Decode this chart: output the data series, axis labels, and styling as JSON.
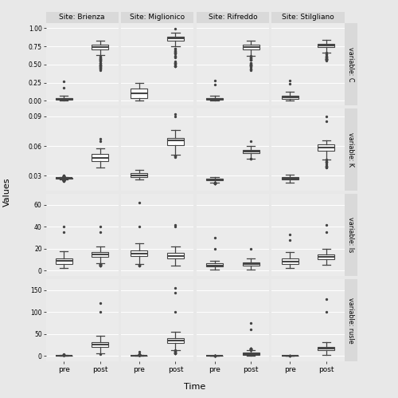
{
  "sites": [
    "Site: Brienza",
    "Site: Miglionico",
    "Site: Rifreddo",
    "Site: Stilgliano"
  ],
  "site_keys": [
    "Brienza",
    "Miglionico",
    "Rifreddo",
    "Stilgliano"
  ],
  "var_keys": [
    "C",
    "K",
    "ls",
    "rusle"
  ],
  "var_labels": [
    "variable: C",
    "variable: K",
    "variable: ls",
    "variable: rusle"
  ],
  "time_labels": [
    "pre",
    "post"
  ],
  "xlabel": "Time",
  "ylabel": "Values",
  "fig_bg": "#e8e8e8",
  "panel_bg": "#ebebeb",
  "strip_bg": "#d9d9d9",
  "box_fill": "#ffffff",
  "box_edge": "#444444",
  "grid_color": "#ffffff",
  "ylims": {
    "C": [
      -0.06,
      1.07
    ],
    "K": [
      0.015,
      0.098
    ],
    "ls": [
      -5,
      70
    ],
    "rusle": [
      -12,
      175
    ]
  },
  "yticks": {
    "C": [
      0.0,
      0.25,
      0.5,
      0.75,
      1.0
    ],
    "K": [
      0.03,
      0.06,
      0.09
    ],
    "ls": [
      0,
      20,
      40,
      60
    ],
    "rusle": [
      0,
      50,
      100,
      150
    ]
  },
  "box_stats": {
    "C": {
      "Brienza": {
        "pre": [
          0.0,
          0.0,
          0.02,
          0.04,
          0.07,
          [
            0.18,
            0.27
          ]
        ],
        "post": [
          0.42,
          0.7,
          0.76,
          0.78,
          0.83,
          [
            0.5
          ]
        ]
      },
      "Miglionico": {
        "pre": [
          0.0,
          0.01,
          0.1,
          0.18,
          0.25,
          []
        ],
        "post": [
          0.47,
          0.82,
          0.87,
          0.89,
          0.94,
          [
            0.99
          ]
        ]
      },
      "Rifreddo": {
        "pre": [
          0.0,
          0.0,
          0.02,
          0.04,
          0.07,
          [
            0.22,
            0.28
          ]
        ],
        "post": [
          0.42,
          0.7,
          0.76,
          0.78,
          0.83,
          []
        ]
      },
      "Stilgliano": {
        "pre": [
          0.0,
          0.0,
          0.05,
          0.08,
          0.13,
          [
            0.23,
            0.28
          ]
        ],
        "post": [
          0.55,
          0.73,
          0.78,
          0.8,
          0.84,
          []
        ]
      }
    },
    "K": {
      "Brienza": {
        "pre": [
          0.025,
          0.027,
          0.028,
          0.028,
          0.03,
          []
        ],
        "post": [
          0.038,
          0.044,
          0.05,
          0.053,
          0.058,
          [
            0.065,
            0.067
          ]
        ]
      },
      "Miglionico": {
        "pre": [
          0.026,
          0.028,
          0.032,
          0.033,
          0.036,
          []
        ],
        "post": [
          0.048,
          0.06,
          0.067,
          0.07,
          0.076,
          [
            0.09,
            0.092
          ]
        ]
      },
      "Rifreddo": {
        "pre": [
          0.022,
          0.025,
          0.027,
          0.027,
          0.029,
          []
        ],
        "post": [
          0.047,
          0.052,
          0.055,
          0.057,
          0.06,
          [
            0.065
          ]
        ]
      },
      "Stilgliano": {
        "pre": [
          0.023,
          0.026,
          0.028,
          0.029,
          0.031,
          [
            0.027
          ]
        ],
        "post": [
          0.038,
          0.055,
          0.06,
          0.063,
          0.066,
          [
            0.085,
            0.09
          ]
        ]
      }
    },
    "ls": {
      "Brienza": {
        "pre": [
          2,
          5,
          10,
          12,
          18,
          [
            35,
            40
          ]
        ],
        "post": [
          4,
          12,
          15,
          17,
          22,
          [
            35,
            40
          ]
        ]
      },
      "Miglionico": {
        "pre": [
          4,
          12,
          17,
          19,
          25,
          [
            40,
            62
          ]
        ],
        "post": [
          4,
          10,
          14,
          17,
          22,
          [
            40,
            42
          ]
        ]
      },
      "Rifreddo": {
        "pre": [
          1,
          3,
          5,
          7,
          9,
          [
            20,
            30
          ]
        ],
        "post": [
          1,
          4,
          6,
          8,
          11,
          [
            20
          ]
        ]
      },
      "Stilgliano": {
        "pre": [
          2,
          5,
          10,
          12,
          17,
          [
            28,
            33
          ]
        ],
        "post": [
          5,
          10,
          13,
          15,
          20,
          [
            35,
            42
          ]
        ]
      }
    },
    "rusle": {
      "Brienza": {
        "pre": [
          0.0,
          0.0,
          0.5,
          1.0,
          3.5,
          [
            5.0
          ]
        ],
        "post": [
          5,
          19,
          28,
          33,
          46,
          [
            100,
            120
          ]
        ]
      },
      "Miglionico": {
        "pre": [
          0.0,
          0.0,
          0.5,
          1.0,
          4.0,
          [
            10.0
          ]
        ],
        "post": [
          5,
          28,
          35,
          42,
          55,
          [
            100,
            145,
            155
          ]
        ]
      },
      "Rifreddo": {
        "pre": [
          0.0,
          0.0,
          0.2,
          0.5,
          1.5,
          []
        ],
        "post": [
          0.5,
          2,
          5,
          8,
          18,
          [
            60,
            75
          ]
        ]
      },
      "Stilgliano": {
        "pre": [
          0.0,
          0.0,
          0.3,
          0.7,
          1.5,
          []
        ],
        "post": [
          3,
          12,
          17,
          22,
          32,
          [
            100,
            130
          ]
        ]
      }
    }
  }
}
